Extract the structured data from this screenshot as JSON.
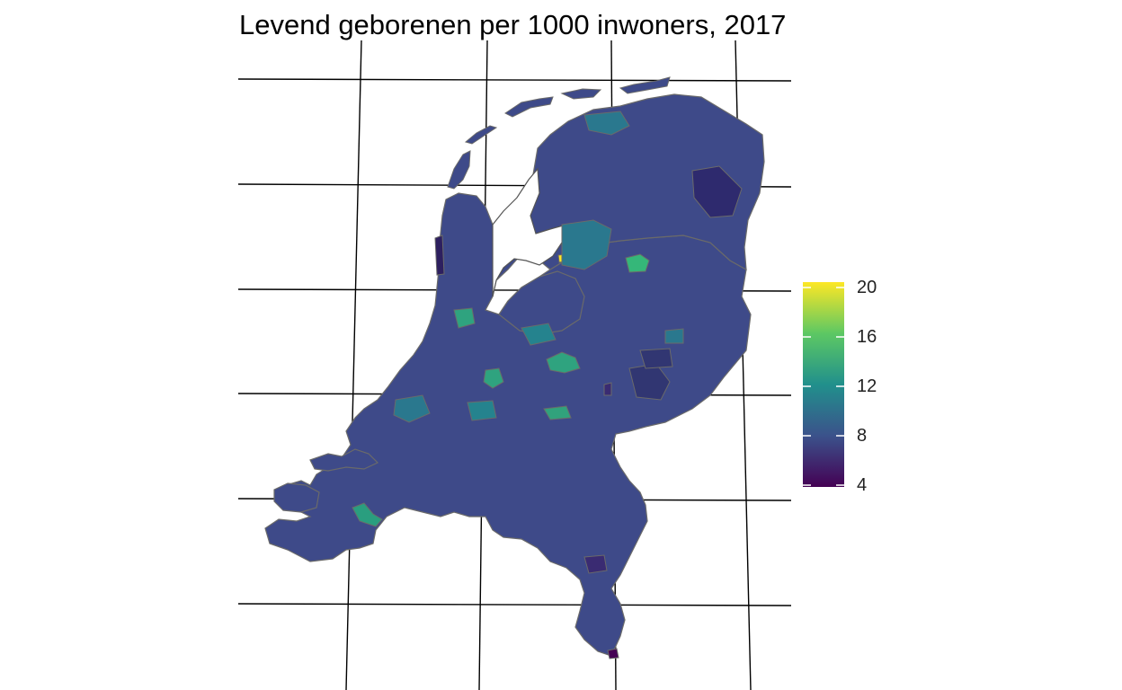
{
  "title": "Levend geborenen per 1000 inwoners, 2017",
  "map": {
    "type": "choropleth",
    "region": "Netherlands municipalities",
    "variable": "Levend geborenen per 1000 inwoners",
    "year": 2017,
    "palette": "viridis",
    "colors": {
      "base": "#3e4a89",
      "low": "#440154",
      "mid": "#2a788e",
      "high_mid": "#35b779",
      "high": "#fde725",
      "border": "#666666",
      "graticule": "#000000"
    }
  },
  "legend": {
    "min": 4,
    "max": 20,
    "ticks": [
      {
        "value": 4,
        "label": "4"
      },
      {
        "value": 8,
        "label": "8"
      },
      {
        "value": 12,
        "label": "12"
      },
      {
        "value": 16,
        "label": "16"
      },
      {
        "value": 20,
        "label": "20"
      }
    ],
    "gradient": [
      "#440154",
      "#3b528b",
      "#21908c",
      "#5dc863",
      "#fde725"
    ]
  }
}
